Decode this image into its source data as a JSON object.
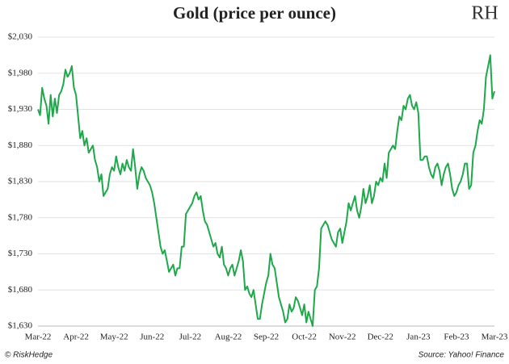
{
  "chart_data": {
    "type": "line",
    "title": "Gold (price per ounce)",
    "logo": "RH",
    "footer_left": "© RiskHedge",
    "footer_right": "Source: Yahoo! Finance",
    "color": "#1ea84a",
    "grid": true,
    "ylim": [
      1630,
      2030
    ],
    "yticks": [
      {
        "value": 1630,
        "label": "$1,630"
      },
      {
        "value": 1680,
        "label": "$1,680"
      },
      {
        "value": 1730,
        "label": "$1,730"
      },
      {
        "value": 1780,
        "label": "$1,780"
      },
      {
        "value": 1830,
        "label": "$1,830"
      },
      {
        "value": 1880,
        "label": "$1,880"
      },
      {
        "value": 1930,
        "label": "$1,930"
      },
      {
        "value": 1980,
        "label": "$1,980"
      },
      {
        "value": 2030,
        "label": "$2,030"
      }
    ],
    "xtick_labels": [
      "Mar-22",
      "Apr-22",
      "May-22",
      "Jun-22",
      "Jul-22",
      "Aug-22",
      "Sep-22",
      "Oct-22",
      "Nov-22",
      "Dec-22",
      "Jan-23",
      "Feb-23",
      "Mar-23"
    ],
    "values": [
      1930,
      1922,
      1960,
      1945,
      1935,
      1910,
      1950,
      1920,
      1945,
      1925,
      1950,
      1955,
      1965,
      1985,
      1975,
      1980,
      1990,
      1960,
      1950,
      1920,
      1890,
      1900,
      1880,
      1890,
      1870,
      1875,
      1880,
      1860,
      1850,
      1830,
      1840,
      1810,
      1815,
      1820,
      1840,
      1850,
      1845,
      1865,
      1850,
      1840,
      1855,
      1845,
      1860,
      1850,
      1845,
      1875,
      1850,
      1820,
      1840,
      1850,
      1845,
      1835,
      1830,
      1825,
      1815,
      1800,
      1780,
      1760,
      1740,
      1730,
      1735,
      1720,
      1705,
      1710,
      1715,
      1700,
      1710,
      1710,
      1740,
      1740,
      1785,
      1790,
      1795,
      1800,
      1810,
      1815,
      1805,
      1810,
      1790,
      1775,
      1770,
      1760,
      1750,
      1740,
      1745,
      1730,
      1725,
      1740,
      1715,
      1710,
      1700,
      1710,
      1715,
      1700,
      1710,
      1720,
      1735,
      1720,
      1680,
      1685,
      1675,
      1670,
      1680,
      1660,
      1640,
      1640,
      1660,
      1675,
      1690,
      1700,
      1730,
      1715,
      1710,
      1690,
      1670,
      1660,
      1650,
      1635,
      1640,
      1660,
      1650,
      1655,
      1670,
      1665,
      1655,
      1645,
      1660,
      1635,
      1650,
      1640,
      1630,
      1680,
      1685,
      1710,
      1765,
      1770,
      1775,
      1770,
      1760,
      1750,
      1745,
      1740,
      1760,
      1765,
      1745,
      1760,
      1775,
      1800,
      1790,
      1800,
      1810,
      1790,
      1780,
      1795,
      1820,
      1800,
      1810,
      1825,
      1800,
      1810,
      1830,
      1825,
      1835,
      1830,
      1855,
      1835,
      1870,
      1875,
      1880,
      1875,
      1900,
      1920,
      1915,
      1935,
      1930,
      1945,
      1950,
      1935,
      1930,
      1940,
      1925,
      1860,
      1860,
      1865,
      1865,
      1850,
      1840,
      1835,
      1850,
      1855,
      1845,
      1825,
      1840,
      1850,
      1855,
      1840,
      1820,
      1810,
      1815,
      1825,
      1830,
      1840,
      1855,
      1855,
      1820,
      1825,
      1870,
      1880,
      1900,
      1915,
      1910,
      1930,
      1975,
      1990,
      2005,
      1945,
      1955
    ]
  }
}
